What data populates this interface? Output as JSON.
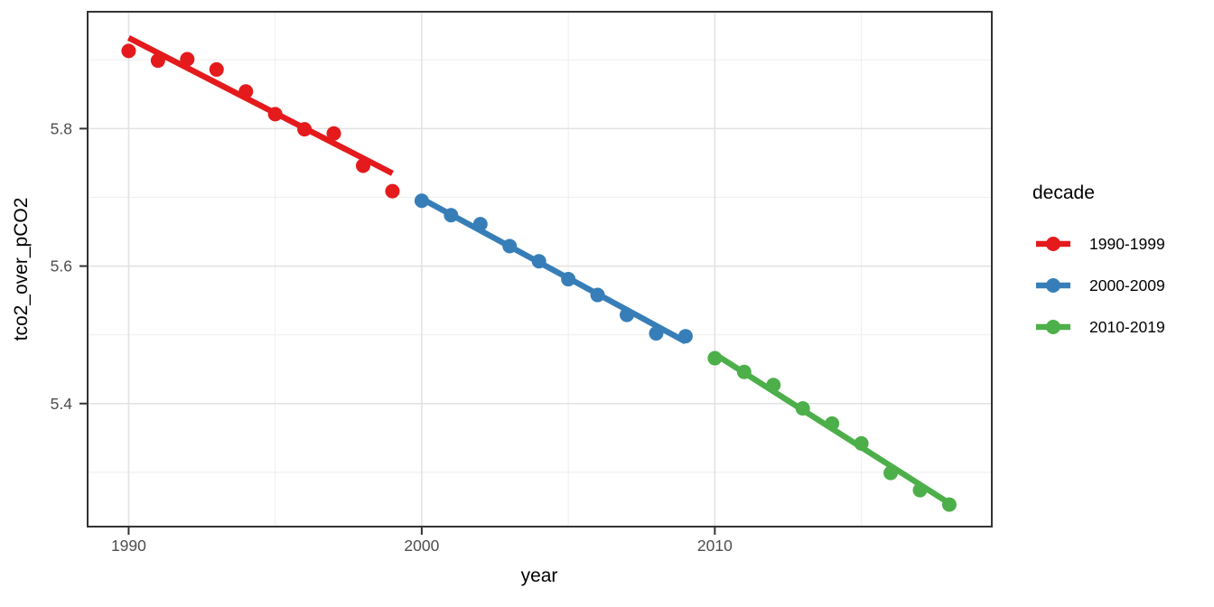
{
  "chart_data": {
    "type": "scatter",
    "title": "",
    "xlabel": "year",
    "ylabel": "tco2_over_pCO2",
    "x_range": [
      1988.6,
      2019.45
    ],
    "y_range": [
      5.221,
      5.97
    ],
    "x_ticks": {
      "values": [
        1990,
        2000,
        2010
      ],
      "labels": [
        "1990",
        "2000",
        "2010"
      ],
      "minor": [
        1995,
        2005,
        2015
      ]
    },
    "y_ticks": {
      "values": [
        5.8,
        5.6,
        5.4
      ],
      "labels": [
        "5.8",
        "5.6",
        "5.4"
      ],
      "minor": [
        5.9,
        5.7,
        5.5,
        5.3
      ]
    },
    "grid": {
      "major": true,
      "minor": true
    },
    "legend": {
      "title": "decade",
      "position": "right"
    },
    "series": [
      {
        "name": "1990-1999",
        "color": "#E41A1C",
        "x": [
          1990,
          1991,
          1992,
          1993,
          1994,
          1995,
          1996,
          1997,
          1998,
          1999
        ],
        "y": [
          5.913,
          5.899,
          5.901,
          5.886,
          5.854,
          5.821,
          5.799,
          5.793,
          5.746,
          5.709
        ],
        "trend": {
          "x": [
            1990,
            1999
          ],
          "y": [
            5.932,
            5.735
          ]
        }
      },
      {
        "name": "2000-2009",
        "color": "#377EB8",
        "x": [
          2000,
          2001,
          2002,
          2003,
          2004,
          2005,
          2006,
          2007,
          2008,
          2009
        ],
        "y": [
          5.695,
          5.674,
          5.661,
          5.629,
          5.607,
          5.581,
          5.558,
          5.529,
          5.502,
          5.498
        ],
        "trend": {
          "x": [
            2000,
            2009
          ],
          "y": [
            5.698,
            5.49
          ]
        }
      },
      {
        "name": "2010-2019",
        "color": "#4DAF4A",
        "x": [
          2010,
          2011,
          2012,
          2013,
          2014,
          2015,
          2016,
          2017,
          2018
        ],
        "y": [
          5.466,
          5.446,
          5.427,
          5.393,
          5.371,
          5.342,
          5.299,
          5.274,
          5.253
        ],
        "trend": {
          "x": [
            2010,
            2018
          ],
          "y": [
            5.472,
            5.255
          ]
        }
      }
    ],
    "style": {
      "point_radius": 8,
      "trend_width": 6.5,
      "grid_major_color": "#E3E3E3",
      "grid_minor_color": "#F0F0F0",
      "panel_border_color": "#333333",
      "tick_color": "#333333",
      "tick_label_color": "#4D4D4D",
      "axis_title_color": "#000000",
      "panel_background": "#FFFFFF"
    }
  }
}
